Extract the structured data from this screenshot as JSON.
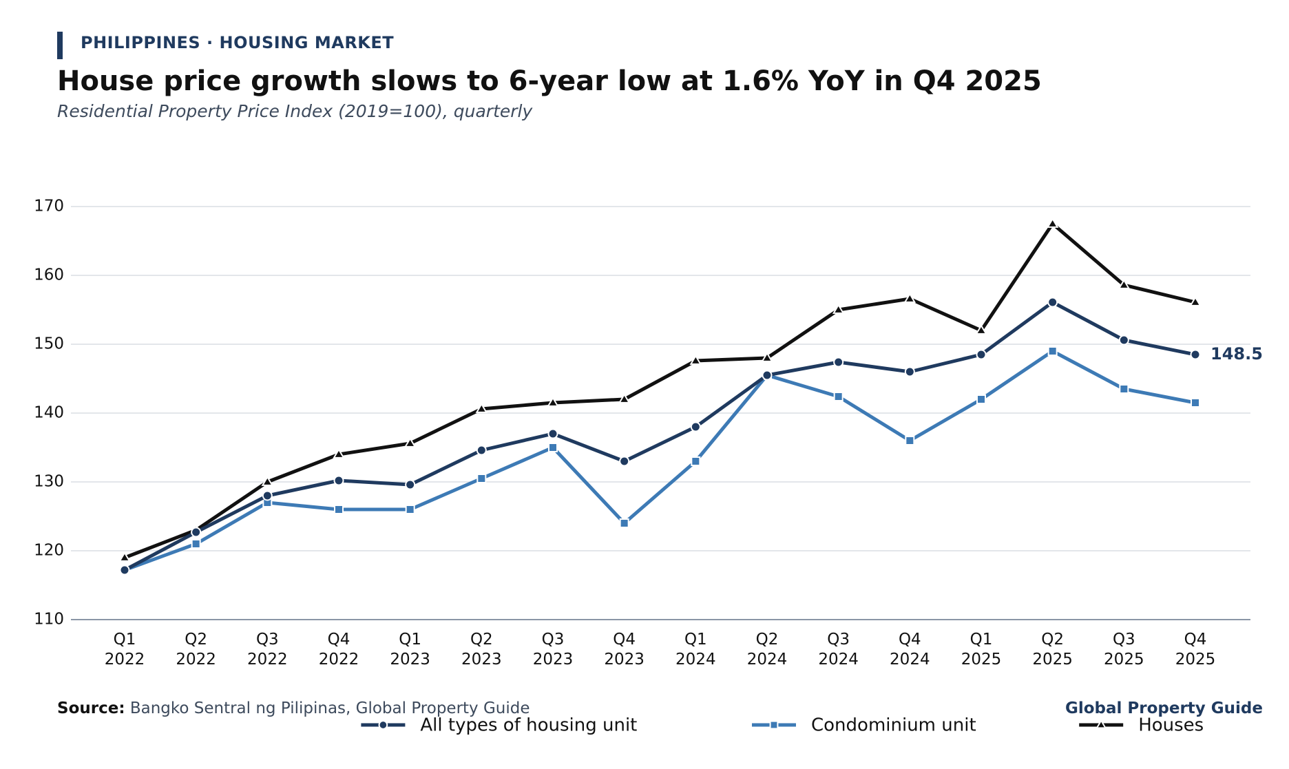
{
  "kicker": "PHILIPPINES · HOUSING MARKET",
  "source_label": "Source:",
  "source": "Bangko Sentral ng Pilipinas, Global Property Guide",
  "brand": "Global Property Guide",
  "chart_data": {
    "type": "line",
    "title": "House price growth slows to 6-year low at 1.6% YoY in Q4 2025",
    "subtitle": "Residential Property Price Index (2019=100), quarterly",
    "categories": [
      "Q1 2022",
      "Q2 2022",
      "Q3 2022",
      "Q4 2022",
      "Q1 2023",
      "Q2 2023",
      "Q3 2023",
      "Q4 2023",
      "Q1 2024",
      "Q2 2024",
      "Q3 2024",
      "Q4 2024",
      "Q1 2025",
      "Q2 2025",
      "Q3 2025",
      "Q4 2025"
    ],
    "series": [
      {
        "name": "All types of housing unit",
        "color": "#1f3a5f",
        "marker": "circle",
        "values": [
          117.2,
          122.7,
          128,
          130.2,
          129.6,
          134.6,
          137,
          133,
          138,
          145.5,
          147.4,
          146,
          148.5,
          156.1,
          150.6,
          148.5
        ],
        "value_labels": [
          null,
          null,
          null,
          null,
          null,
          null,
          null,
          null,
          null,
          null,
          null,
          null,
          null,
          null,
          null,
          "148.5"
        ]
      },
      {
        "name": "Condominium unit",
        "color": "#3d7ab5",
        "marker": "square",
        "values": [
          117.2,
          121,
          127,
          126,
          126,
          130.5,
          135,
          124,
          133,
          145.5,
          142.4,
          136,
          142,
          149,
          143.5,
          141.5
        ]
      },
      {
        "name": "Houses",
        "color": "#111111",
        "marker": "triangle",
        "values": [
          119,
          123,
          130,
          134,
          135.6,
          140.6,
          141.5,
          142,
          147.6,
          148,
          155,
          156.6,
          152,
          167.5,
          158.6,
          156.1
        ]
      }
    ],
    "ylim": [
      110,
      170
    ],
    "yticks": [
      110,
      120,
      130,
      140,
      150,
      160,
      170
    ],
    "grid": true
  }
}
